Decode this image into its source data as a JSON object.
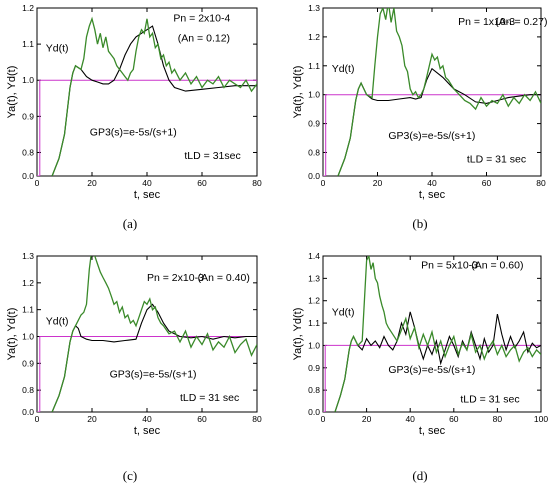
{
  "chart_data": [
    {
      "type": "line",
      "panel_label": "(a)",
      "xlabel": "t, sec",
      "ylabel": "Ya(t), Yd(t)",
      "xlim": [
        0,
        80
      ],
      "ylim": [
        0,
        1.2
      ],
      "xticks": [
        0,
        20,
        40,
        60,
        80
      ],
      "yticks": [
        0.0,
        0.8,
        0.9,
        1.0,
        1.1,
        1.2
      ],
      "series": [
        {
          "name": "Yd(t)",
          "color": "#cc33cc",
          "x": [
            0,
            1,
            1,
            80
          ],
          "y": [
            0,
            0,
            1.0,
            1.0
          ]
        },
        {
          "name": "",
          "color": "#000000",
          "x": [
            5.5,
            8,
            10,
            12,
            13,
            14,
            16,
            18,
            20,
            22,
            24,
            26,
            28,
            30,
            32,
            34,
            36,
            38,
            40,
            42,
            44,
            46,
            48,
            50,
            54,
            60,
            66,
            72,
            80
          ],
          "y": [
            0,
            0.6,
            0.85,
            0.98,
            1.02,
            1.04,
            1.03,
            1.01,
            1.0,
            0.995,
            0.99,
            0.99,
            1.0,
            1.03,
            1.07,
            1.1,
            1.12,
            1.13,
            1.14,
            1.15,
            1.1,
            1.04,
            1.0,
            0.98,
            0.97,
            0.975,
            0.98,
            0.985,
            0.985
          ]
        },
        {
          "name": "",
          "color": "#3a8a2a",
          "x": [
            5.5,
            8,
            10,
            12,
            13,
            14,
            16,
            17,
            18,
            19,
            20,
            21,
            22,
            23,
            24,
            25,
            26,
            27,
            28,
            29,
            30,
            31,
            32,
            33,
            34,
            35,
            36,
            37,
            38,
            39,
            40,
            41,
            42,
            43,
            44,
            45,
            46,
            47,
            48,
            49,
            50,
            52,
            54,
            56,
            58,
            60,
            62,
            64,
            66,
            68,
            70,
            72,
            74,
            76,
            78,
            80
          ],
          "y": [
            0,
            0.6,
            0.85,
            0.98,
            1.02,
            1.04,
            1.03,
            1.06,
            1.12,
            1.15,
            1.17,
            1.14,
            1.1,
            1.13,
            1.09,
            1.12,
            1.08,
            1.07,
            1.06,
            1.04,
            1.03,
            1.02,
            1.01,
            1.0,
            1.02,
            1.03,
            1.08,
            1.12,
            1.14,
            1.13,
            1.17,
            1.12,
            1.13,
            1.09,
            1.1,
            1.06,
            1.07,
            1.04,
            1.05,
            1.02,
            1.03,
            1.0,
            1.02,
            0.99,
            1.01,
            0.98,
            1.0,
            0.99,
            1.01,
            0.98,
            1.0,
            0.99,
            0.98,
            1.0,
            0.97,
            0.99
          ]
        }
      ],
      "annotations": {
        "yd_label": "Yd(t)",
        "pn": "Pn = 2x10-4",
        "an": "(An = 0.12)",
        "gp": "GP3(s)=e-5s/(s+1)",
        "tld": "tLD = 31sec"
      }
    },
    {
      "type": "line",
      "panel_label": "(b)",
      "xlabel": "t, sec",
      "ylabel": "Ya(t), Yd(t)",
      "xlim": [
        0,
        80
      ],
      "ylim": [
        0,
        1.3
      ],
      "xticks": [
        0,
        20,
        40,
        60,
        80
      ],
      "yticks": [
        0.0,
        0.8,
        0.9,
        1.0,
        1.1,
        1.2,
        1.3
      ],
      "series": [
        {
          "name": "Yd(t)",
          "color": "#cc33cc",
          "x": [
            0,
            1,
            1,
            80
          ],
          "y": [
            0,
            0,
            1.0,
            1.0
          ]
        },
        {
          "name": "",
          "color": "#000000",
          "x": [
            5.5,
            8,
            10,
            12,
            13,
            14,
            16,
            18,
            20,
            24,
            28,
            32,
            34,
            36,
            38,
            40,
            44,
            48,
            52,
            56,
            60,
            64,
            68,
            72,
            76,
            80
          ],
          "y": [
            0,
            0.6,
            0.85,
            0.98,
            1.02,
            1.04,
            1.0,
            0.985,
            0.98,
            0.98,
            0.985,
            0.99,
            0.985,
            0.99,
            1.05,
            1.09,
            1.06,
            1.02,
            1.0,
            0.975,
            0.97,
            0.98,
            0.99,
            0.995,
            1.0,
            1.0
          ]
        },
        {
          "name": "",
          "color": "#3a8a2a",
          "x": [
            5.5,
            8,
            10,
            12,
            13,
            14,
            16,
            18,
            19,
            20,
            21,
            22,
            23,
            24,
            25,
            26,
            27,
            28,
            29,
            30,
            31,
            32,
            33,
            34,
            35,
            36,
            37,
            38,
            39,
            40,
            41,
            42,
            43,
            44,
            45,
            46,
            48,
            50,
            52,
            54,
            56,
            58,
            60,
            62,
            64,
            66,
            68,
            70,
            72,
            74,
            76,
            78,
            80
          ],
          "y": [
            0,
            0.6,
            0.85,
            0.98,
            1.02,
            1.04,
            1.0,
            0.99,
            1.1,
            1.2,
            1.28,
            1.3,
            1.26,
            1.32,
            1.25,
            1.3,
            1.22,
            1.2,
            1.17,
            1.1,
            1.08,
            1.02,
            1.0,
            1.01,
            0.99,
            1.0,
            1.02,
            1.06,
            1.1,
            1.14,
            1.12,
            1.13,
            1.09,
            1.1,
            1.06,
            1.05,
            1.02,
            1.0,
            0.98,
            0.97,
            0.95,
            0.99,
            0.96,
            0.98,
            0.97,
            1.0,
            0.96,
            0.99,
            0.97,
            1.0,
            0.98,
            1.01,
            0.97
          ]
        }
      ],
      "annotations": {
        "yd_label": "Yd(t)",
        "pn": "Pn = 1x10-3",
        "an": "(An = 0.27)",
        "gp": "GP3(s)=e-5s/(s+1)",
        "tld": "tLD = 31 sec"
      }
    },
    {
      "type": "line",
      "panel_label": "(c)",
      "xlabel": "t, sec",
      "ylabel": "Ya(t), Yd(t)",
      "xlim": [
        0,
        80
      ],
      "ylim": [
        0,
        1.3
      ],
      "xticks": [
        0,
        20,
        40,
        60,
        80
      ],
      "yticks": [
        0.0,
        0.8,
        0.9,
        1.0,
        1.1,
        1.2,
        1.3
      ],
      "series": [
        {
          "name": "Yd(t)",
          "color": "#cc33cc",
          "x": [
            0,
            1,
            1,
            80
          ],
          "y": [
            0,
            0,
            1.0,
            1.0
          ]
        },
        {
          "name": "",
          "color": "#000000",
          "x": [
            5.5,
            8,
            10,
            12,
            13,
            14,
            15,
            16,
            18,
            20,
            24,
            28,
            32,
            36,
            38,
            40,
            42,
            44,
            46,
            48,
            52,
            56,
            60,
            64,
            68,
            72,
            76,
            80
          ],
          "y": [
            0,
            0.6,
            0.85,
            0.98,
            1.02,
            1.04,
            1.03,
            1.0,
            0.99,
            0.985,
            0.985,
            0.98,
            0.985,
            0.99,
            1.05,
            1.1,
            1.12,
            1.09,
            1.05,
            1.02,
            1.0,
            0.995,
            1.0,
            0.99,
            1.0,
            0.995,
            1.0,
            1.0
          ]
        },
        {
          "name": "",
          "color": "#3a8a2a",
          "x": [
            5.5,
            8,
            10,
            12,
            13,
            14,
            16,
            17,
            18,
            19,
            20,
            21,
            22,
            23,
            24,
            25,
            26,
            27,
            28,
            29,
            30,
            31,
            32,
            33,
            34,
            35,
            36,
            37,
            38,
            39,
            40,
            41,
            42,
            43,
            44,
            45,
            46,
            48,
            50,
            52,
            54,
            56,
            58,
            60,
            62,
            64,
            66,
            68,
            70,
            72,
            74,
            76,
            78,
            80
          ],
          "y": [
            0,
            0.6,
            0.85,
            0.98,
            1.02,
            1.04,
            1.08,
            1.09,
            1.12,
            1.25,
            1.33,
            1.3,
            1.27,
            1.24,
            1.22,
            1.2,
            1.18,
            1.15,
            1.12,
            1.13,
            1.09,
            1.11,
            1.07,
            1.08,
            1.05,
            1.06,
            1.04,
            1.07,
            1.1,
            1.13,
            1.12,
            1.14,
            1.1,
            1.11,
            1.07,
            1.05,
            1.04,
            1.01,
            1.02,
            0.98,
            1.02,
            0.96,
            1.0,
            0.97,
            1.01,
            0.95,
            0.98,
            0.96,
            1.0,
            0.94,
            0.97,
            0.99,
            0.93,
            0.97
          ]
        }
      ],
      "annotations": {
        "yd_label": "Yd(t)",
        "pn": "Pn = 2x10-3",
        "an": "(An = 0.40)",
        "gp": "GP3(s)=e-5s/(s+1)",
        "tld": "tLD = 31 sec"
      }
    },
    {
      "type": "line",
      "panel_label": "(d)",
      "xlabel": "t, sec",
      "ylabel": "Ya(t), Yd(t)",
      "xlim": [
        0,
        100
      ],
      "ylim": [
        0,
        1.4
      ],
      "xticks": [
        0,
        20,
        40,
        60,
        80,
        100
      ],
      "yticks": [
        0.0,
        0.8,
        0.9,
        1.0,
        1.1,
        1.2,
        1.3,
        1.4
      ],
      "series": [
        {
          "name": "Yd(t)",
          "color": "#cc33cc",
          "x": [
            0,
            1,
            1,
            100
          ],
          "y": [
            0,
            0,
            1.0,
            1.0
          ]
        },
        {
          "name": "",
          "color": "#000000",
          "x": [
            5.5,
            8,
            10,
            12,
            13,
            14,
            16,
            18,
            20,
            22,
            24,
            26,
            28,
            30,
            32,
            34,
            36,
            38,
            40,
            42,
            44,
            46,
            48,
            50,
            52,
            54,
            56,
            58,
            60,
            62,
            64,
            66,
            68,
            70,
            72,
            74,
            76,
            78,
            80,
            82,
            84,
            86,
            88,
            90,
            92,
            94,
            96,
            98,
            100
          ],
          "y": [
            0,
            0.6,
            0.85,
            0.98,
            1.02,
            1.04,
            1.0,
            0.98,
            1.03,
            1.0,
            1.02,
            0.99,
            1.04,
            1.0,
            0.98,
            1.02,
            1.1,
            1.05,
            1.15,
            1.08,
            1.0,
            0.94,
            1.0,
            0.96,
            1.02,
            0.92,
            0.98,
            1.04,
            1.0,
            0.95,
            1.02,
            0.98,
            1.06,
            1.0,
            0.94,
            1.03,
            0.97,
            1.0,
            1.14,
            1.05,
            0.98,
            1.04,
            0.99,
            1.02,
            1.06,
            0.97,
            1.01,
            0.99,
            1.0
          ]
        },
        {
          "name": "",
          "color": "#3a8a2a",
          "x": [
            5.5,
            8,
            10,
            12,
            13,
            14,
            16,
            18,
            19,
            20,
            21,
            22,
            23,
            24,
            25,
            26,
            27,
            28,
            29,
            30,
            32,
            34,
            36,
            38,
            40,
            42,
            44,
            46,
            48,
            50,
            52,
            54,
            56,
            58,
            60,
            62,
            64,
            66,
            68,
            70,
            72,
            74,
            76,
            78,
            80,
            82,
            84,
            86,
            88,
            90,
            92,
            94,
            96,
            98,
            100
          ],
          "y": [
            0,
            0.6,
            0.85,
            0.98,
            1.02,
            1.04,
            1.0,
            1.02,
            1.2,
            1.38,
            1.4,
            1.34,
            1.37,
            1.3,
            1.28,
            1.22,
            1.18,
            1.15,
            1.1,
            1.08,
            1.05,
            1.02,
            1.07,
            1.12,
            1.03,
            1.08,
            0.99,
            1.05,
            1.0,
            1.06,
            0.97,
            1.02,
            0.95,
            1.0,
            1.04,
            0.96,
            1.01,
            0.98,
            1.05,
            0.97,
            1.0,
            0.94,
            0.99,
            1.02,
            0.96,
            1.0,
            0.95,
            0.98,
            1.0,
            0.93,
            0.97,
            0.99,
            0.95,
            0.98,
            0.96
          ]
        }
      ],
      "annotations": {
        "yd_label": "Yd(t)",
        "pn": "Pn = 5x10-3",
        "an": "(An = 0.60)",
        "gp": "GP3(s)=e-5s/(s+1)",
        "tld": "tLD = 31 sec"
      }
    }
  ]
}
